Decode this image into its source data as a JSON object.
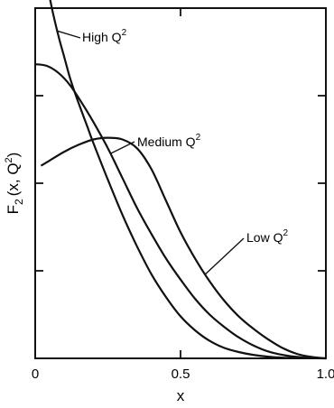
{
  "chart_data": {
    "type": "line",
    "xlabel": "x",
    "ylabel_main": "F",
    "ylabel_sub": "2",
    "ylabel_rest": "(x, Q",
    "ylabel_sup": "2",
    "ylabel_close": ")",
    "xlim": [
      0,
      1
    ],
    "ylim": [
      0,
      1
    ],
    "x_ticks": [
      {
        "value": 0,
        "label": "0"
      },
      {
        "value": 0.5,
        "label": "0.5"
      },
      {
        "value": 1,
        "label": "1.0"
      }
    ],
    "y_ticks": [
      0.25,
      0.5,
      0.75
    ],
    "grid": false,
    "series": [
      {
        "name_base": "High Q",
        "name_sup": "2",
        "x": [
          0.04,
          0.06,
          0.08,
          0.1,
          0.12,
          0.14,
          0.16,
          0.18,
          0.2,
          0.25,
          0.3,
          0.35,
          0.4,
          0.45,
          0.5,
          0.55,
          0.6,
          0.65,
          0.7,
          0.75,
          0.8,
          0.85,
          0.9,
          0.95,
          1.0
        ],
        "y": [
          1.07,
          0.99,
          0.92,
          0.86,
          0.8,
          0.75,
          0.705,
          0.66,
          0.615,
          0.51,
          0.41,
          0.32,
          0.24,
          0.175,
          0.12,
          0.08,
          0.05,
          0.03,
          0.018,
          0.01,
          0.005,
          0.002,
          0.001,
          0.0003,
          0
        ]
      },
      {
        "name_base": "Medium Q",
        "name_sup": "2",
        "x": [
          0.0,
          0.04,
          0.08,
          0.12,
          0.16,
          0.2,
          0.25,
          0.3,
          0.35,
          0.4,
          0.45,
          0.5,
          0.55,
          0.6,
          0.65,
          0.7,
          0.75,
          0.8,
          0.85,
          0.9,
          0.95,
          1.0
        ],
        "y": [
          0.84,
          0.835,
          0.815,
          0.78,
          0.73,
          0.675,
          0.6,
          0.515,
          0.43,
          0.355,
          0.285,
          0.225,
          0.17,
          0.125,
          0.09,
          0.06,
          0.037,
          0.02,
          0.01,
          0.004,
          0.001,
          0
        ]
      },
      {
        "name_base": "Low Q",
        "name_sup": "2",
        "x": [
          0.02,
          0.05,
          0.1,
          0.15,
          0.2,
          0.25,
          0.3,
          0.35,
          0.4,
          0.45,
          0.5,
          0.55,
          0.6,
          0.65,
          0.7,
          0.75,
          0.8,
          0.85,
          0.9,
          0.95,
          1.0
        ],
        "y": [
          0.55,
          0.565,
          0.59,
          0.61,
          0.625,
          0.63,
          0.625,
          0.6,
          0.54,
          0.45,
          0.36,
          0.285,
          0.22,
          0.165,
          0.12,
          0.085,
          0.055,
          0.03,
          0.013,
          0.004,
          0
        ]
      }
    ]
  }
}
